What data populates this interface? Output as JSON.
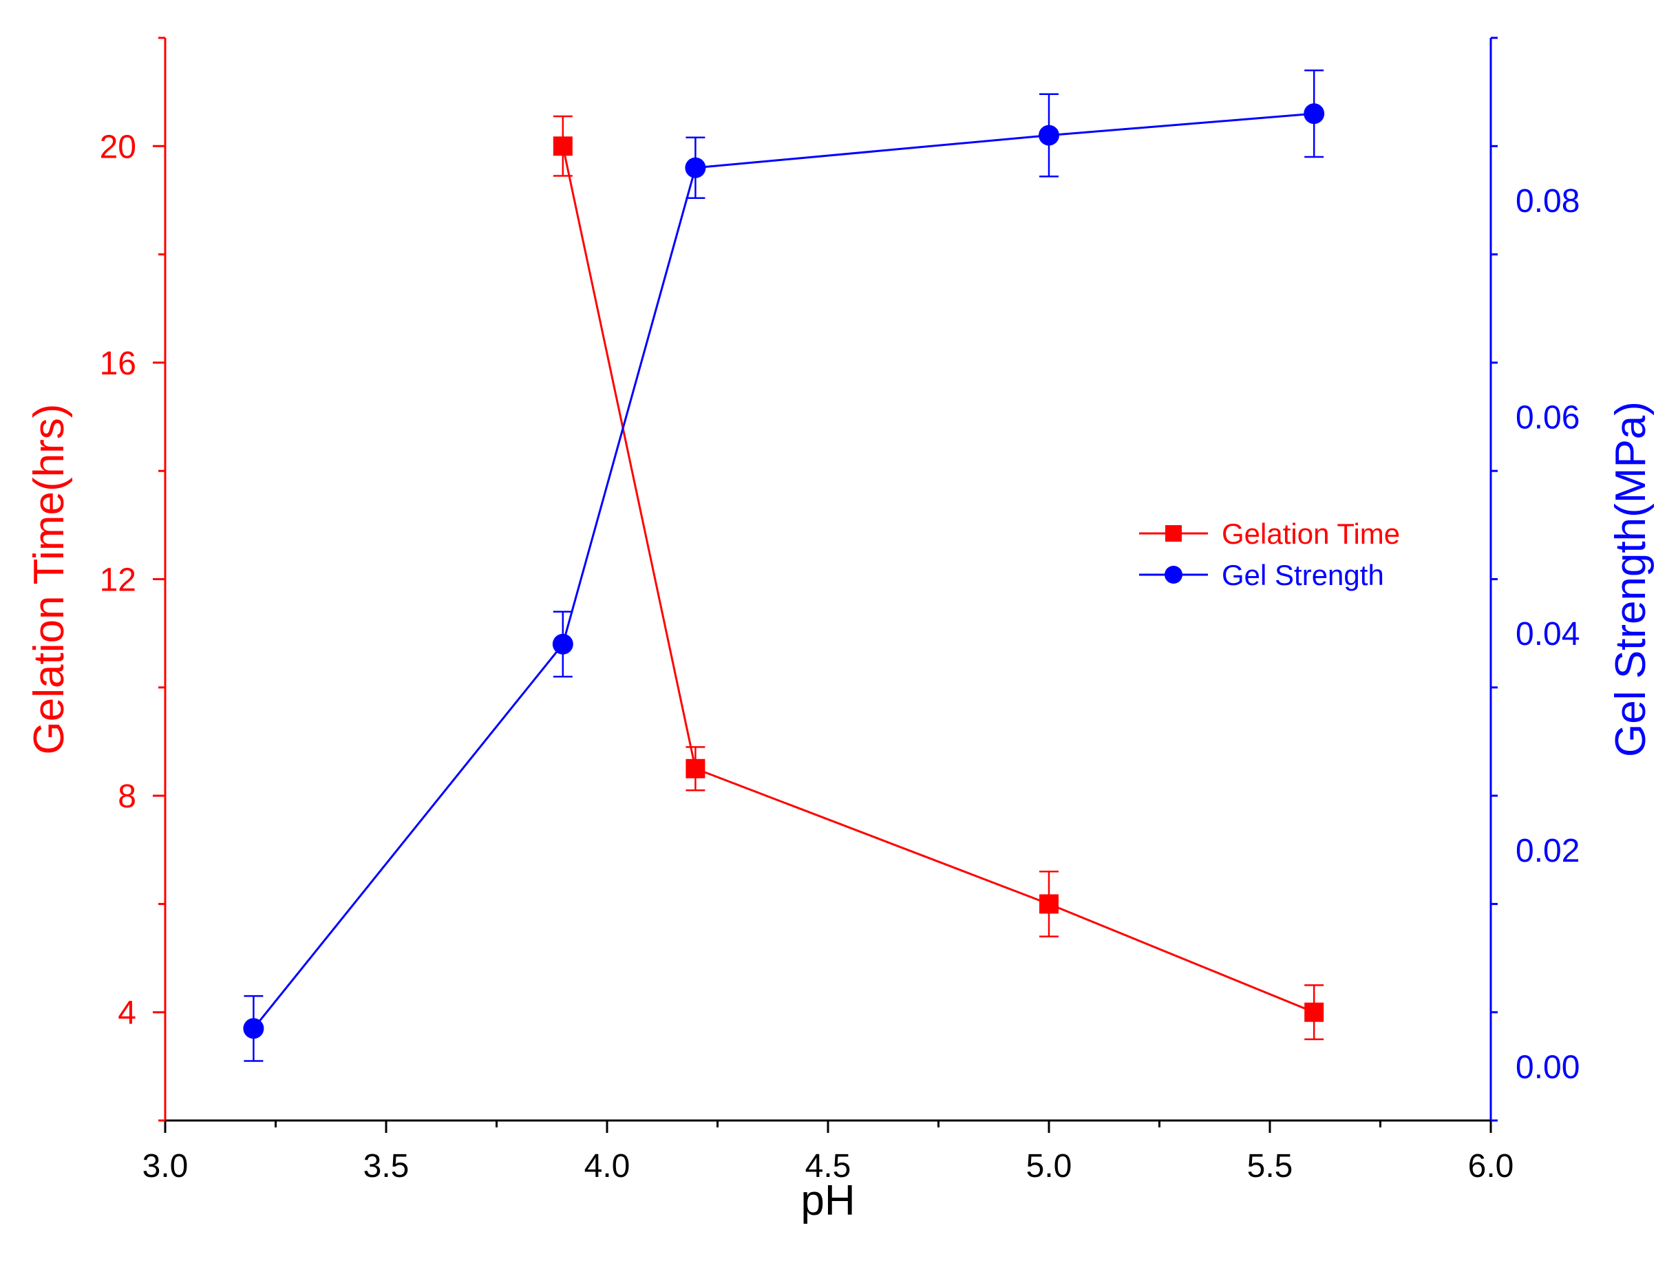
{
  "chart_data": {
    "type": "line",
    "title": "",
    "xlabel": "pH",
    "xlim": [
      3.0,
      6.0
    ],
    "x_ticks": [
      "3.0",
      "3.5",
      "4.0",
      "4.5",
      "5.0",
      "5.5",
      "6.0"
    ],
    "y_left": {
      "label": "Gelation Time(hrs)",
      "ylim": [
        2,
        22
      ],
      "ticks": [
        "4",
        "8",
        "12",
        "16",
        "20"
      ],
      "color": "#ff0000"
    },
    "y_right": {
      "label": "Gel Strength(MPa)",
      "ylim": [
        -0.005,
        0.095
      ],
      "ticks": [
        "0.00",
        "0.02",
        "0.04",
        "0.06",
        "0.08"
      ],
      "color": "#0000ff"
    },
    "legend": {
      "placement": "center-right",
      "entries": [
        "Gelation Time",
        "Gel Strength"
      ]
    },
    "series": [
      {
        "name": "Gelation Time",
        "axis": "left",
        "color": "#ff0000",
        "marker": "square",
        "x": [
          3.9,
          4.2,
          5.0,
          5.6
        ],
        "y": [
          20.0,
          8.5,
          6.0,
          4.0
        ],
        "err": [
          0.55,
          0.4,
          0.6,
          0.5
        ]
      },
      {
        "name": "Gel Strength",
        "axis": "right",
        "color": "#0000ff",
        "marker": "circle",
        "x": [
          3.2,
          3.9,
          4.2,
          5.0,
          5.6
        ],
        "y": [
          0.0035,
          0.039,
          0.083,
          0.086,
          0.088
        ],
        "err": [
          0.003,
          0.003,
          0.0028,
          0.0038,
          0.004
        ]
      }
    ]
  }
}
